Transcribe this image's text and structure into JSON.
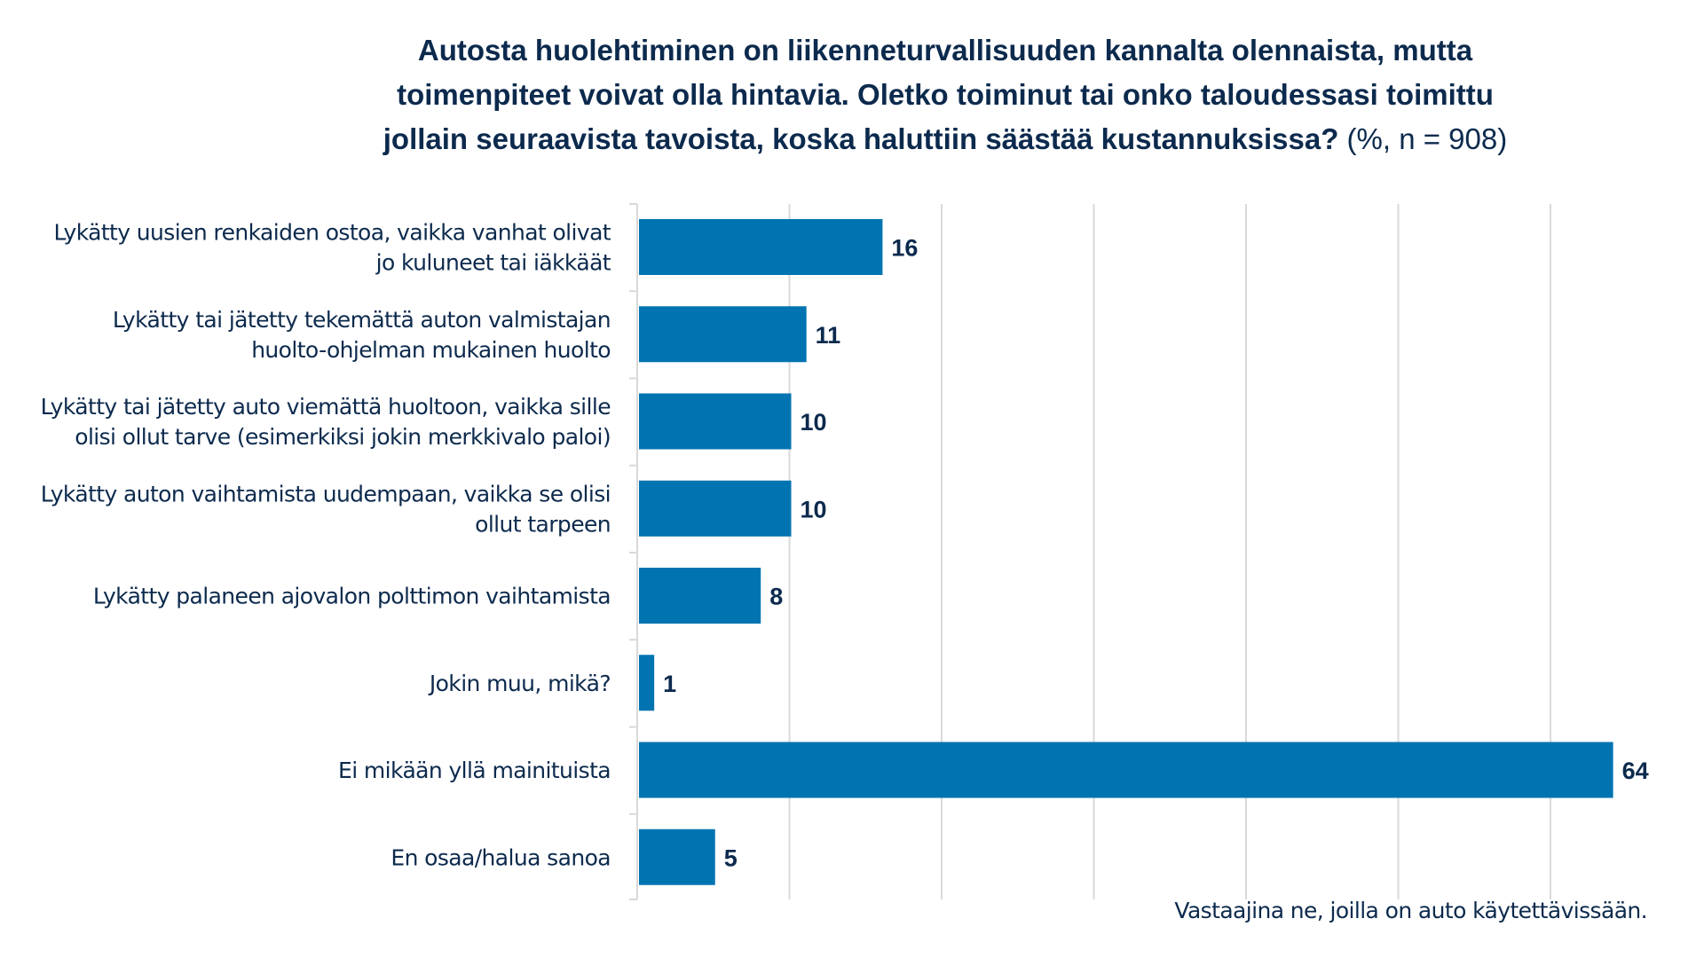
{
  "chart_data": {
    "type": "bar",
    "orientation": "horizontal",
    "title_lines": [
      "Autosta huolehtiminen on liikenneturvallisuuden kannalta olennaista, mutta",
      "toimenpiteet voivat olla hintavia. Oletko toiminut tai onko taloudessasi toimittu",
      "jollain seuraavista tavoista, koska haluttiin säästää kustannuksissa?"
    ],
    "title_suffix": "(%, n = 908)",
    "categories": [
      [
        "Lykätty uusien renkaiden ostoa, vaikka vanhat olivat",
        "jo kuluneet tai iäkkäät"
      ],
      [
        "Lykätty tai jätetty tekemättä auton valmistajan",
        "huolto-ohjelman mukainen huolto"
      ],
      [
        "Lykätty tai jätetty auto viemättä huoltoon, vaikka sille",
        "olisi ollut tarve (esimerkiksi jokin merkkivalo paloi)"
      ],
      [
        "Lykätty auton vaihtamista uudempaan, vaikka se olisi",
        "ollut tarpeen"
      ],
      [
        "Lykätty palaneen ajovalon polttimon vaihtamista"
      ],
      [
        "Jokin muu, mikä?"
      ],
      [
        "Ei mikään yllä mainituista"
      ],
      [
        "En osaa/halua sanoa"
      ]
    ],
    "values": [
      16,
      11,
      10,
      10,
      8,
      1,
      64,
      5
    ],
    "xlabel": "",
    "ylabel": "",
    "xlim": [
      0,
      70
    ],
    "gridlines_x": [
      0,
      10,
      20,
      30,
      40,
      50,
      60
    ],
    "grid": true,
    "x_tick_labels_visible": false,
    "legend": "none",
    "data_labels": true,
    "colors": {
      "bar": "#0073b1",
      "text": "#0c2a4d",
      "grid": "#d9d9d9"
    }
  },
  "footnote": "Vastaajina ne, joilla on auto käytettävissään."
}
